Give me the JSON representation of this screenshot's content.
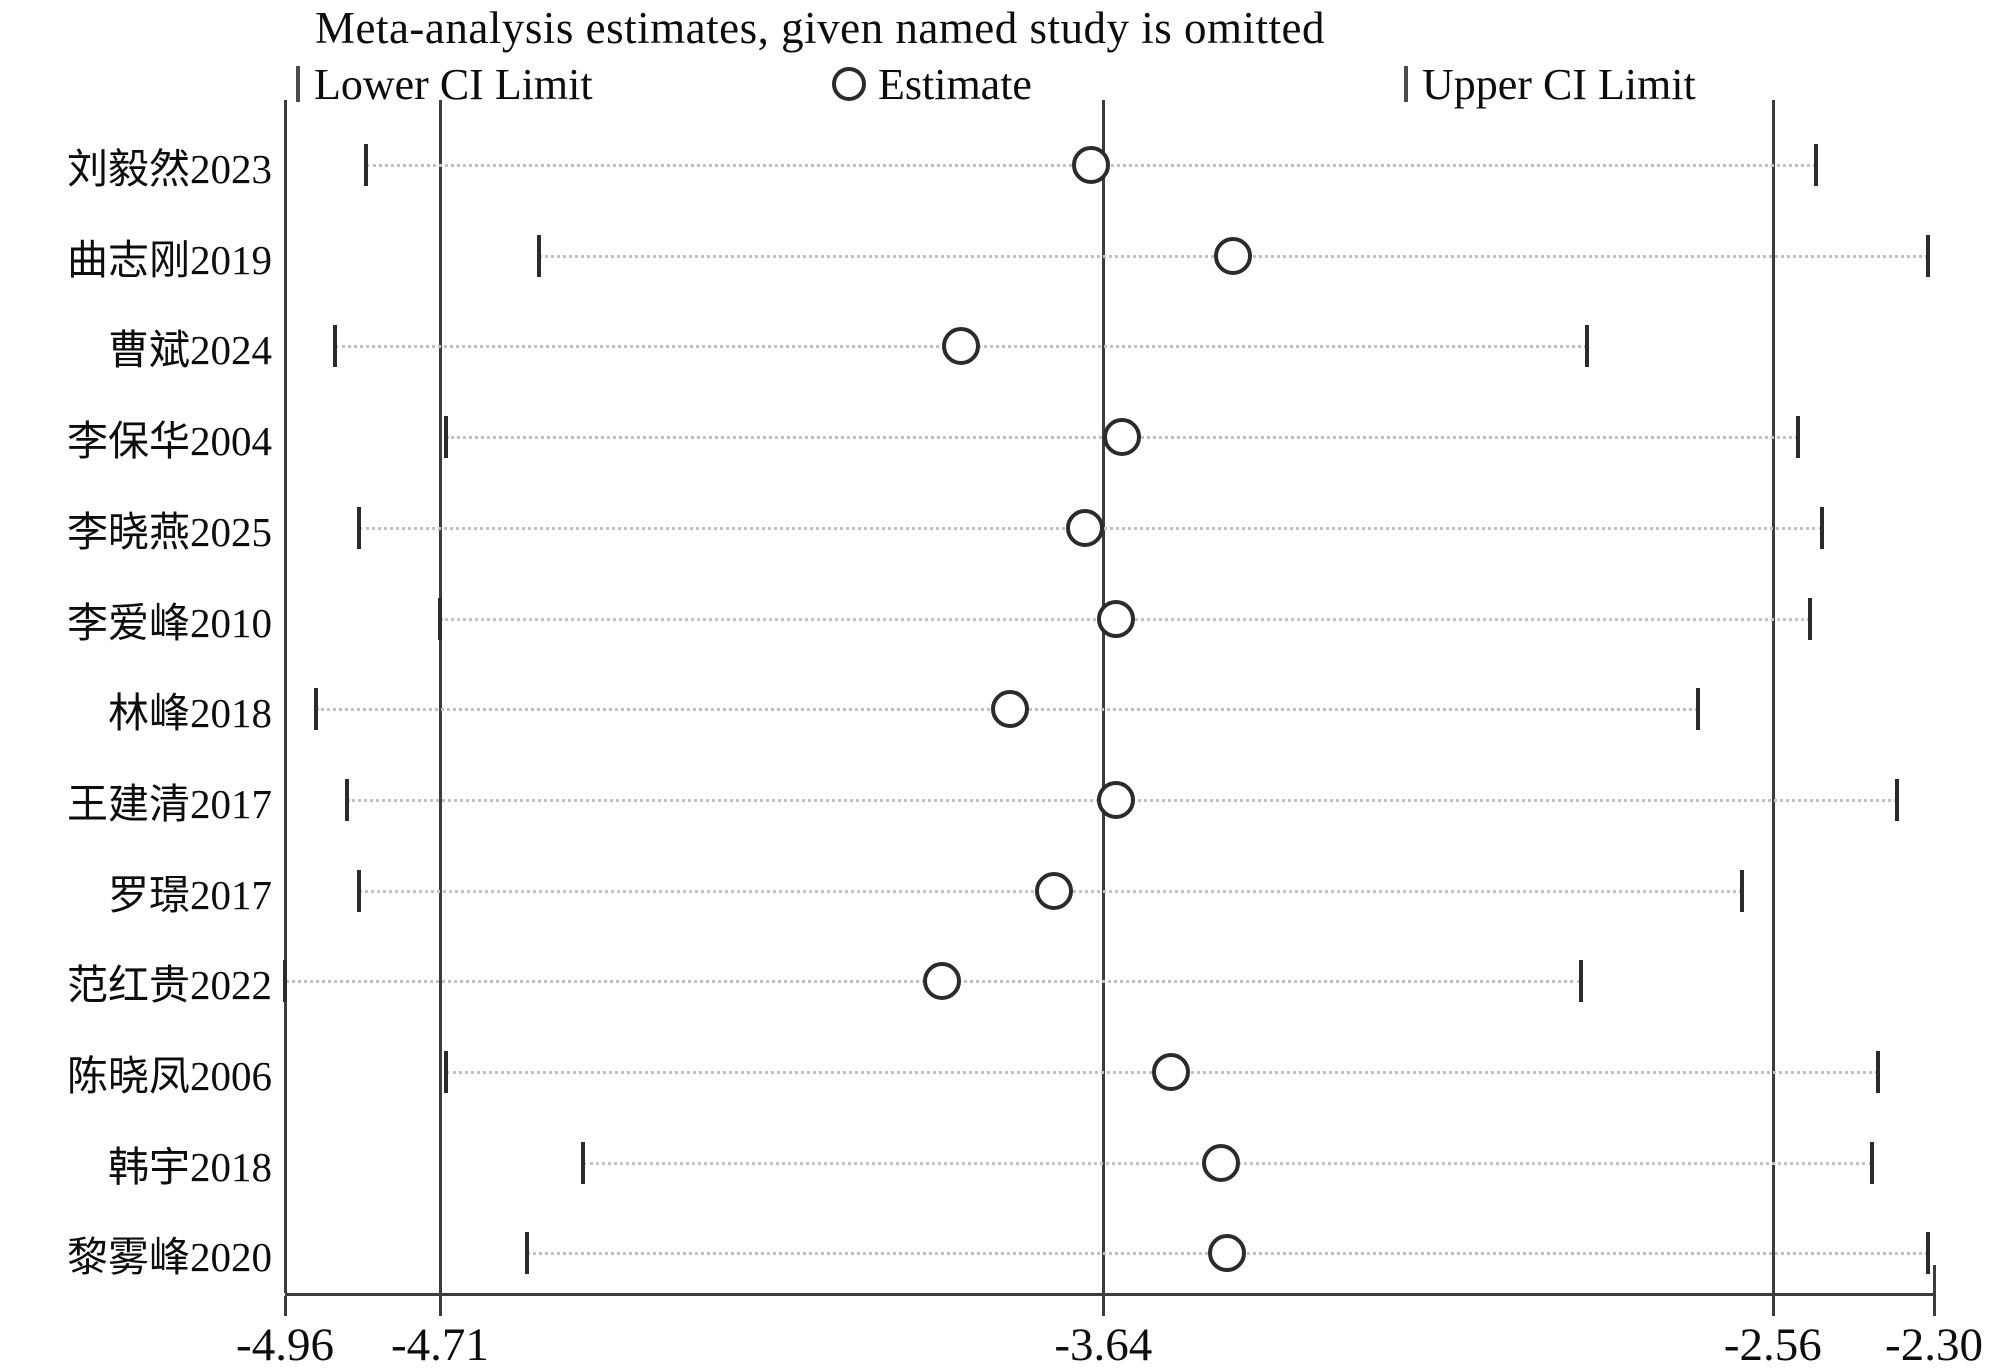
{
  "accent_colors": {
    "ink": "#0d0d0d",
    "line": "#3d3d3d",
    "marker": "#2b2b2b",
    "dotted_leader": "#c2c2c2",
    "background": "#ffffff"
  },
  "chart_data": {
    "type": "scatter",
    "subtype": "leave-one-out-sensitivity-forest",
    "title": "Meta-analysis estimates, given named study is omitted",
    "legend": [
      {
        "marker": "tick",
        "label": "Lower CI Limit"
      },
      {
        "marker": "circle",
        "label": "Estimate"
      },
      {
        "marker": "tick",
        "label": "Upper CI Limit"
      }
    ],
    "x_axis": {
      "min": -4.96,
      "max": -2.3,
      "tick_values": [
        -4.96,
        -4.71,
        -3.64,
        -2.56,
        -2.3
      ],
      "tick_labels": [
        "-4.96",
        "-4.71",
        "-3.64",
        "-2.56",
        "-2.30"
      ],
      "reference_lines": [
        -4.71,
        -3.64,
        -2.56
      ]
    },
    "grid": "dotted-row-leaders",
    "legend_position": "top",
    "studies": [
      {
        "label": "刘毅然2023",
        "lower": -4.83,
        "estimate": -3.66,
        "upper": -2.49
      },
      {
        "label": "曲志刚2019",
        "lower": -4.55,
        "estimate": -3.43,
        "upper": -2.31
      },
      {
        "label": "曹斌2024",
        "lower": -4.88,
        "estimate": -3.87,
        "upper": -2.86
      },
      {
        "label": "李保华2004",
        "lower": -4.7,
        "estimate": -3.61,
        "upper": -2.52
      },
      {
        "label": "李晓燕2025",
        "lower": -4.84,
        "estimate": -3.67,
        "upper": -2.48
      },
      {
        "label": "李爱峰2010",
        "lower": -4.71,
        "estimate": -3.62,
        "upper": -2.5
      },
      {
        "label": "林峰2018",
        "lower": -4.91,
        "estimate": -3.79,
        "upper": -2.68
      },
      {
        "label": "王建清2017",
        "lower": -4.86,
        "estimate": -3.62,
        "upper": -2.36
      },
      {
        "label": "罗璟2017",
        "lower": -4.84,
        "estimate": -3.72,
        "upper": -2.61
      },
      {
        "label": "范红贵2022",
        "lower": -4.96,
        "estimate": -3.9,
        "upper": -2.87
      },
      {
        "label": "陈晓凤2006",
        "lower": -4.7,
        "estimate": -3.53,
        "upper": -2.39
      },
      {
        "label": "韩宇2018",
        "lower": -4.48,
        "estimate": -3.45,
        "upper": -2.4
      },
      {
        "label": "黎雾峰2020",
        "lower": -4.57,
        "estimate": -3.44,
        "upper": -2.31
      }
    ]
  }
}
